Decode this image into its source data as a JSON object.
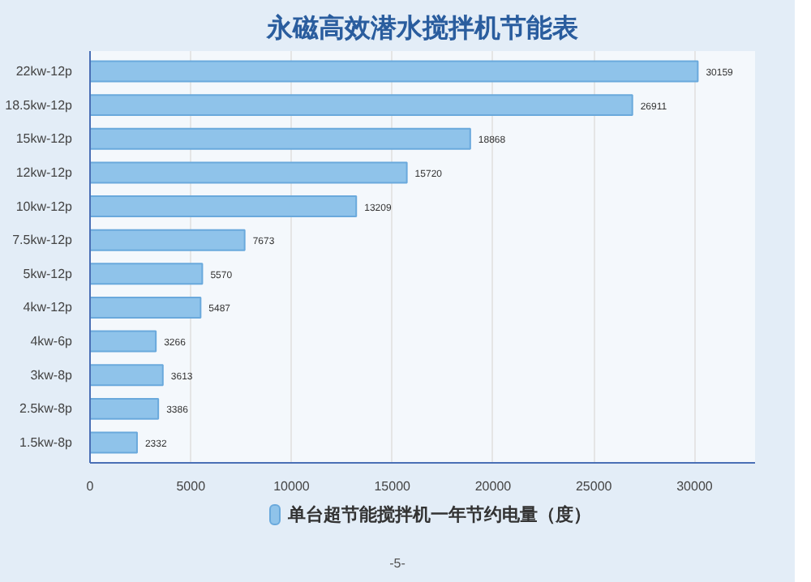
{
  "chart_data": {
    "type": "bar",
    "orientation": "horizontal",
    "title": "永磁高效潜水搅拌机节能表",
    "categories": [
      "22kw-12p",
      "18.5kw-12p",
      "15kw-12p",
      "12kw-12p",
      "10kw-12p",
      "7.5kw-12p",
      "5kw-12p",
      "4kw-12p",
      "4kw-6p",
      "3kw-8p",
      "2.5kw-8p",
      "1.5kw-8p"
    ],
    "series": [
      {
        "name": "单台超节能搅拌机一年节约电量（度）",
        "color": "#8fc3ea",
        "values": [
          30159,
          26911,
          18868,
          15720,
          13209,
          7673,
          5570,
          5487,
          3266,
          3613,
          3386,
          2332
        ]
      }
    ],
    "data_labels": true,
    "xlim": [
      0,
      33000
    ],
    "xticks": [
      0,
      5000,
      10000,
      15000,
      20000,
      25000,
      30000
    ],
    "grid": "x",
    "legend": "bottom",
    "annotations": [
      "-5-"
    ]
  }
}
